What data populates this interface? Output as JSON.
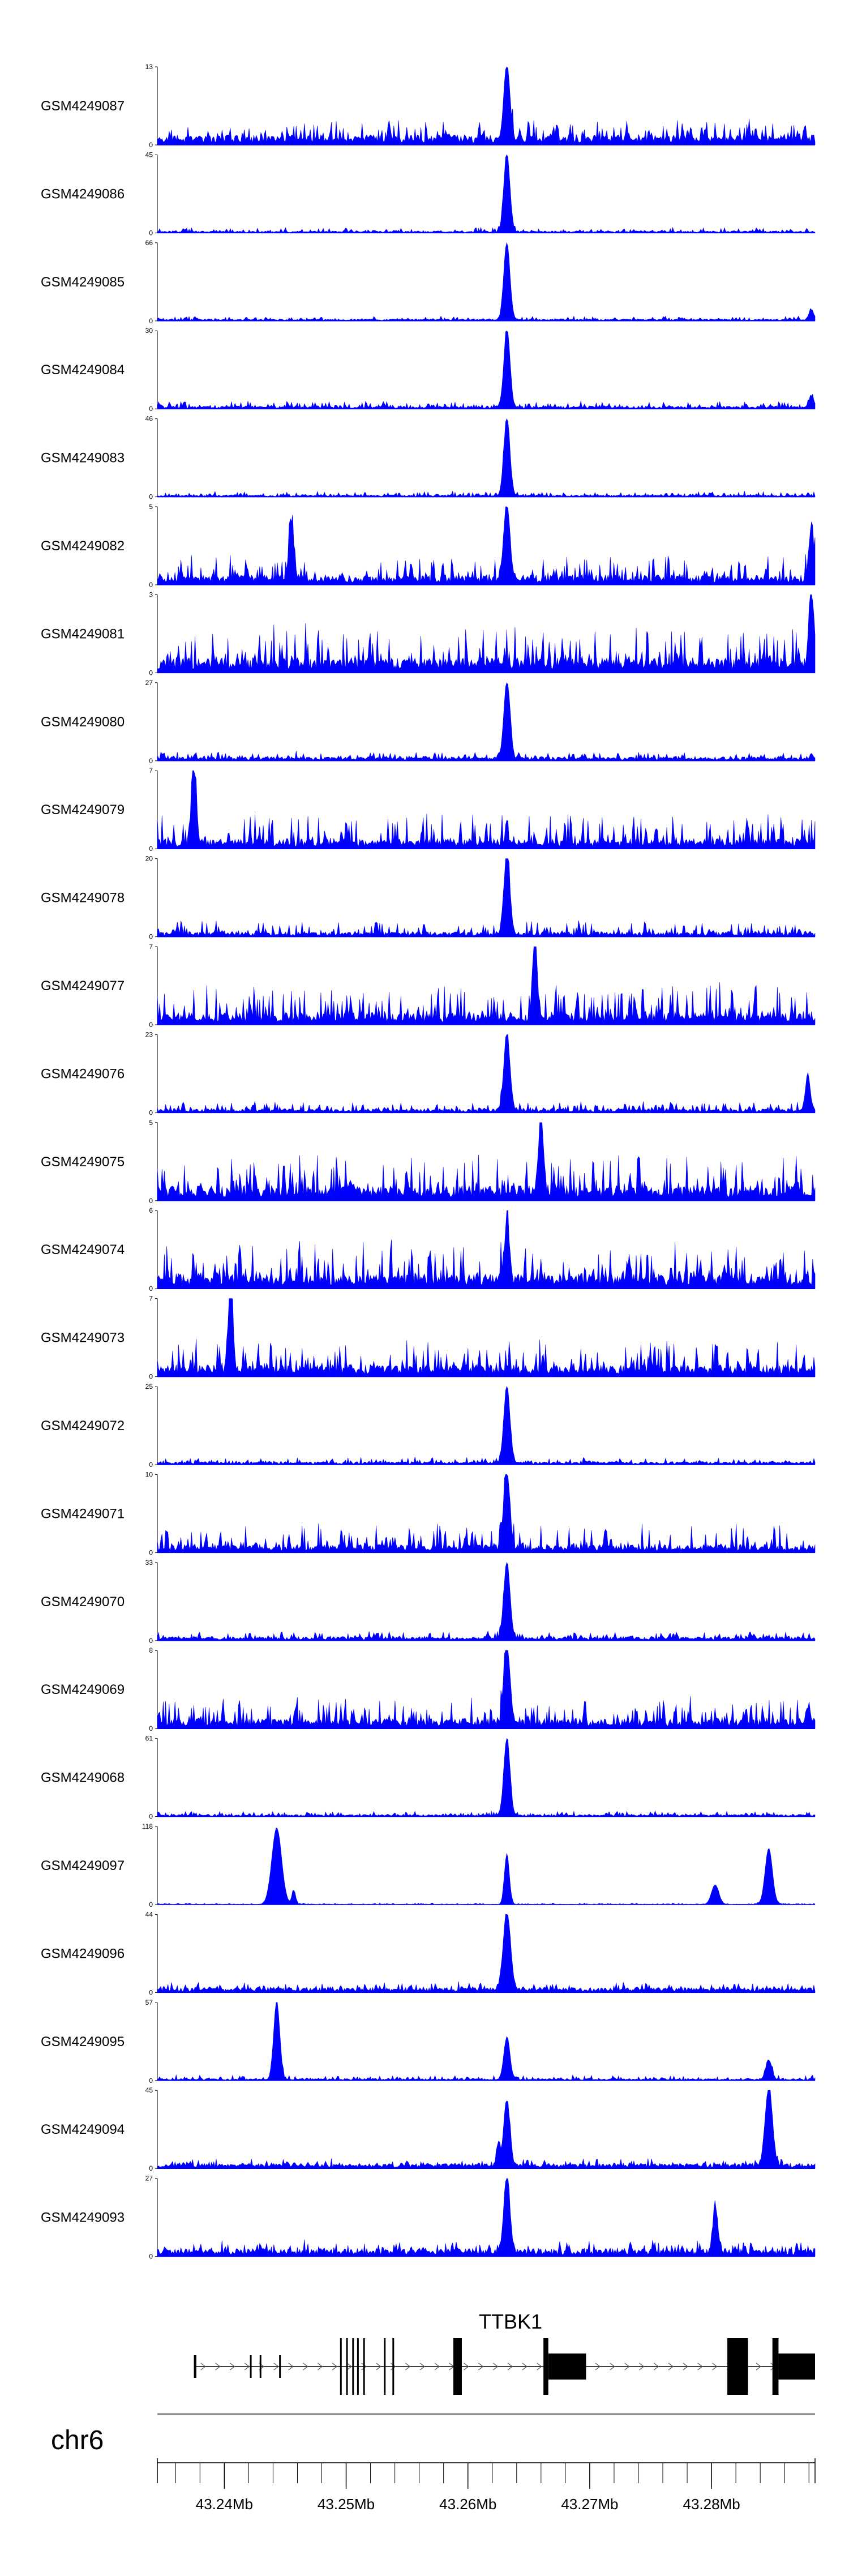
{
  "chart_data": {
    "type": "area",
    "chromosome": "chr6",
    "region_mb": [
      43.2345,
      43.2885
    ],
    "colors": {
      "signal": "#0000FF",
      "axis": "#000000",
      "ideogram": "#808080"
    },
    "tracks": [
      {
        "sample": "GSM4249087",
        "max": 13,
        "baseline": 0.1,
        "noise": 0.22,
        "seed": 87,
        "peaks": [
          [
            43.2632,
            1.0,
            0.00025
          ]
        ]
      },
      {
        "sample": "GSM4249086",
        "max": 45,
        "baseline": 0.02,
        "noise": 0.05,
        "seed": 86,
        "peaks": [
          [
            43.2632,
            1.0,
            0.00025
          ]
        ]
      },
      {
        "sample": "GSM4249085",
        "max": 66,
        "baseline": 0.02,
        "noise": 0.04,
        "seed": 85,
        "peaks": [
          [
            43.2632,
            1.0,
            0.00025
          ],
          [
            43.2882,
            0.12,
            0.0002
          ]
        ]
      },
      {
        "sample": "GSM4249084",
        "max": 30,
        "baseline": 0.03,
        "noise": 0.07,
        "seed": 84,
        "peaks": [
          [
            43.2632,
            1.0,
            0.00025
          ],
          [
            43.2882,
            0.15,
            0.0002
          ]
        ]
      },
      {
        "sample": "GSM4249083",
        "max": 46,
        "baseline": 0.02,
        "noise": 0.05,
        "seed": 83,
        "peaks": [
          [
            43.2632,
            1.0,
            0.00025
          ]
        ]
      },
      {
        "sample": "GSM4249082",
        "max": 5,
        "baseline": 0.1,
        "noise": 0.28,
        "seed": 82,
        "peaks": [
          [
            43.2632,
            1.0,
            0.00025
          ],
          [
            43.2455,
            0.7,
            0.0002
          ],
          [
            43.2882,
            0.7,
            0.0002
          ]
        ]
      },
      {
        "sample": "GSM4249081",
        "max": 3,
        "baseline": 0.15,
        "noise": 0.45,
        "seed": 81,
        "peaks": [
          [
            43.2882,
            1.0,
            0.0002
          ]
        ]
      },
      {
        "sample": "GSM4249080",
        "max": 27,
        "baseline": 0.04,
        "noise": 0.08,
        "seed": 80,
        "peaks": [
          [
            43.2632,
            1.0,
            0.00025
          ]
        ]
      },
      {
        "sample": "GSM4249079",
        "max": 7,
        "baseline": 0.1,
        "noise": 0.35,
        "seed": 79,
        "peaks": [
          [
            43.2375,
            1.0,
            0.0002
          ]
        ]
      },
      {
        "sample": "GSM4249078",
        "max": 20,
        "baseline": 0.05,
        "noise": 0.16,
        "seed": 78,
        "peaks": [
          [
            43.2632,
            1.0,
            0.00025
          ]
        ]
      },
      {
        "sample": "GSM4249077",
        "max": 7,
        "baseline": 0.12,
        "noise": 0.4,
        "seed": 77,
        "peaks": [
          [
            43.2655,
            0.95,
            0.0002
          ]
        ]
      },
      {
        "sample": "GSM4249076",
        "max": 23,
        "baseline": 0.04,
        "noise": 0.1,
        "seed": 76,
        "peaks": [
          [
            43.2632,
            1.0,
            0.00025
          ],
          [
            43.2879,
            0.45,
            0.0002
          ]
        ]
      },
      {
        "sample": "GSM4249075",
        "max": 5,
        "baseline": 0.15,
        "noise": 0.45,
        "seed": 75,
        "peaks": [
          [
            43.266,
            1.0,
            0.0002
          ]
        ]
      },
      {
        "sample": "GSM4249074",
        "max": 6,
        "baseline": 0.15,
        "noise": 0.45,
        "seed": 74,
        "peaks": [
          [
            43.2632,
            0.75,
            0.0002
          ]
        ]
      },
      {
        "sample": "GSM4249073",
        "max": 7,
        "baseline": 0.12,
        "noise": 0.38,
        "seed": 73,
        "peaks": [
          [
            43.2405,
            1.0,
            0.0002
          ]
        ]
      },
      {
        "sample": "GSM4249072",
        "max": 25,
        "baseline": 0.03,
        "noise": 0.06,
        "seed": 72,
        "peaks": [
          [
            43.2632,
            1.0,
            0.00025
          ]
        ]
      },
      {
        "sample": "GSM4249071",
        "max": 10,
        "baseline": 0.08,
        "noise": 0.28,
        "seed": 71,
        "peaks": [
          [
            43.2632,
            1.0,
            0.00025
          ]
        ]
      },
      {
        "sample": "GSM4249070",
        "max": 33,
        "baseline": 0.04,
        "noise": 0.08,
        "seed": 70,
        "peaks": [
          [
            43.2632,
            1.0,
            0.00025
          ]
        ]
      },
      {
        "sample": "GSM4249069",
        "max": 8,
        "baseline": 0.1,
        "noise": 0.32,
        "seed": 69,
        "peaks": [
          [
            43.2632,
            1.0,
            0.00025
          ]
        ]
      },
      {
        "sample": "GSM4249068",
        "max": 61,
        "baseline": 0.02,
        "noise": 0.05,
        "seed": 68,
        "peaks": [
          [
            43.2632,
            1.0,
            0.00025
          ]
        ]
      },
      {
        "sample": "GSM4249097",
        "max": 118,
        "baseline": 0.005,
        "noise": 0.015,
        "seed": 97,
        "peaks": [
          [
            43.2443,
            0.98,
            0.0004
          ],
          [
            43.2632,
            0.65,
            0.0002
          ],
          [
            43.2847,
            0.72,
            0.0003
          ],
          [
            43.2803,
            0.25,
            0.0003
          ],
          [
            43.2457,
            0.18,
            0.00015
          ]
        ]
      },
      {
        "sample": "GSM4249096",
        "max": 44,
        "baseline": 0.05,
        "noise": 0.08,
        "seed": 96,
        "peaks": [
          [
            43.2632,
            1.0,
            0.0003
          ]
        ]
      },
      {
        "sample": "GSM4249095",
        "max": 57,
        "baseline": 0.02,
        "noise": 0.05,
        "seed": 95,
        "peaks": [
          [
            43.2443,
            1.0,
            0.00025
          ],
          [
            43.2632,
            0.55,
            0.00025
          ],
          [
            43.2847,
            0.25,
            0.00025
          ]
        ]
      },
      {
        "sample": "GSM4249094",
        "max": 45,
        "baseline": 0.05,
        "noise": 0.07,
        "seed": 94,
        "peaks": [
          [
            43.2632,
            0.85,
            0.00025
          ],
          [
            43.2847,
            1.0,
            0.0003
          ],
          [
            43.2625,
            0.3,
            0.00015
          ]
        ]
      },
      {
        "sample": "GSM4249093",
        "max": 27,
        "baseline": 0.08,
        "noise": 0.12,
        "seed": 93,
        "peaks": [
          [
            43.2632,
            1.0,
            0.00025
          ],
          [
            43.2803,
            0.6,
            0.0002
          ]
        ]
      }
    ],
    "gene": {
      "name": "TTBK1",
      "strand": "+",
      "start": 43.2375,
      "end": 43.2885,
      "exons": [
        [
          43.2375,
          43.2377,
          "small"
        ],
        [
          43.2421,
          43.2422,
          "small"
        ],
        [
          43.2429,
          43.243,
          "small"
        ],
        [
          43.2445,
          43.2446,
          "small"
        ],
        [
          43.2495,
          43.2496,
          "large"
        ],
        [
          43.25,
          43.2501,
          "large"
        ],
        [
          43.2505,
          43.2506,
          "large"
        ],
        [
          43.2509,
          43.251,
          "large"
        ],
        [
          43.2514,
          43.2515,
          "large"
        ],
        [
          43.2531,
          43.2532,
          "large"
        ],
        [
          43.2538,
          43.2539,
          "large"
        ],
        [
          43.2588,
          43.2595,
          "large"
        ],
        [
          43.2662,
          43.2666,
          "large"
        ],
        [
          43.2666,
          43.2697,
          "medium"
        ],
        [
          43.2813,
          43.283,
          "large"
        ],
        [
          43.285,
          43.2855,
          "large"
        ],
        [
          43.2855,
          43.2885,
          "medium"
        ]
      ]
    },
    "axis": {
      "chromosome_label": "chr6",
      "tick_labels": [
        "43.24Mb",
        "43.25Mb",
        "43.26Mb",
        "43.27Mb",
        "43.28Mb"
      ],
      "tick_values": [
        43.24,
        43.25,
        43.26,
        43.27,
        43.28
      ],
      "minor_tick_step": 0.002
    }
  }
}
